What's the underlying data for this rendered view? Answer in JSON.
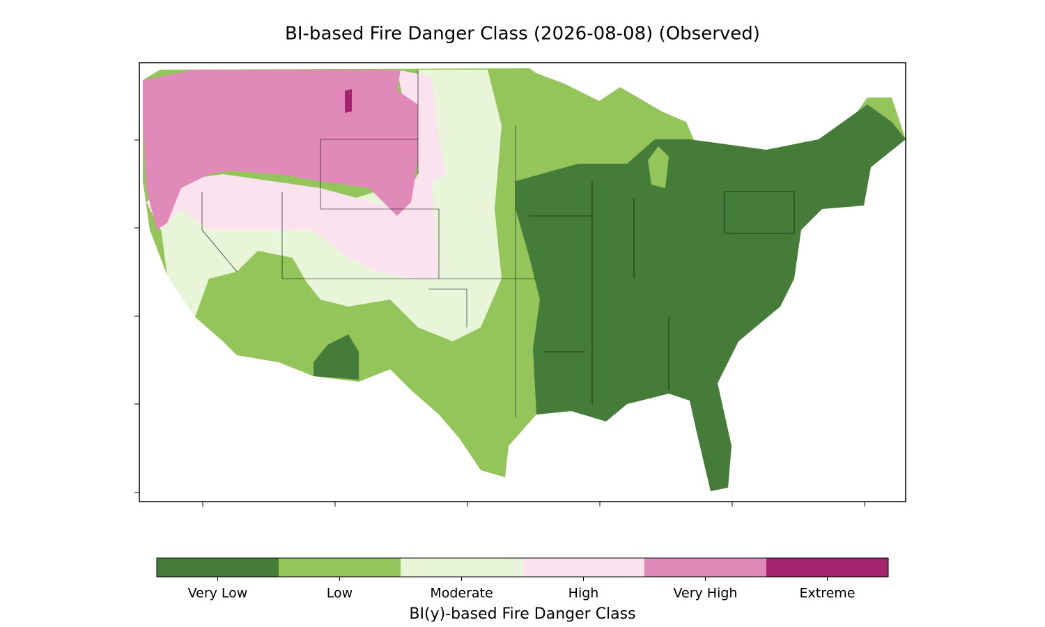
{
  "title": "BI-based Fire Danger Class (2026-08-08) (Observed)",
  "colorbar": {
    "label": "BI(y)-based Fire Danger Class",
    "classes": [
      {
        "label": "Very Low",
        "color": "#467c3a"
      },
      {
        "label": "Low",
        "color": "#93c55b"
      },
      {
        "label": "Moderate",
        "color": "#e8f5d8"
      },
      {
        "label": "High",
        "color": "#fbe2ef"
      },
      {
        "label": "Very High",
        "color": "#e189b9"
      },
      {
        "label": "Extreme",
        "color": "#a3246d"
      }
    ]
  }
}
